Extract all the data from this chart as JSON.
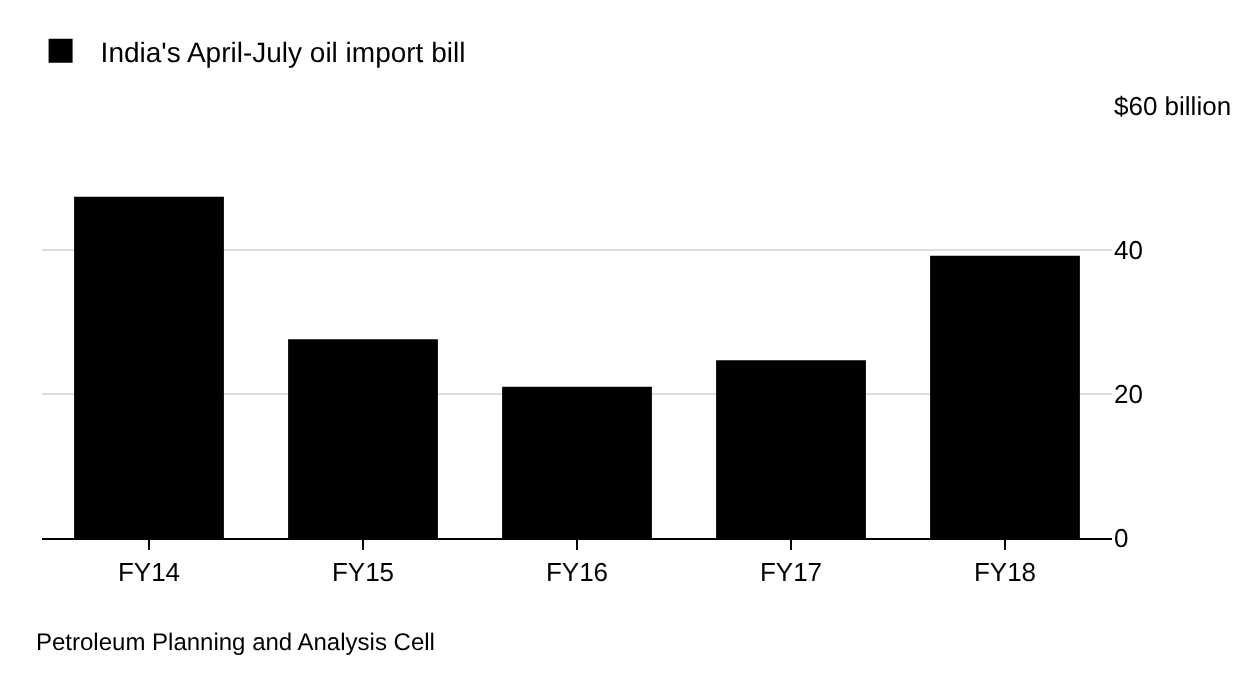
{
  "chart_data": {
    "type": "bar",
    "categories": [
      "FY14",
      "FY15",
      "FY16",
      "FY17",
      "FY18"
    ],
    "series": [
      {
        "name": "India's April-July oil import bill",
        "color": "#000000",
        "values": [
          47.4,
          27.6,
          21.0,
          24.7,
          39.2
        ]
      }
    ],
    "ylim": [
      0,
      60
    ],
    "yticks": [
      0,
      20,
      40,
      {
        "value": 60,
        "label": "$60 billion"
      }
    ],
    "grid": "y",
    "legend": "top left",
    "annotations": [
      "Petroleum Planning and Analysis Cell"
    ]
  }
}
